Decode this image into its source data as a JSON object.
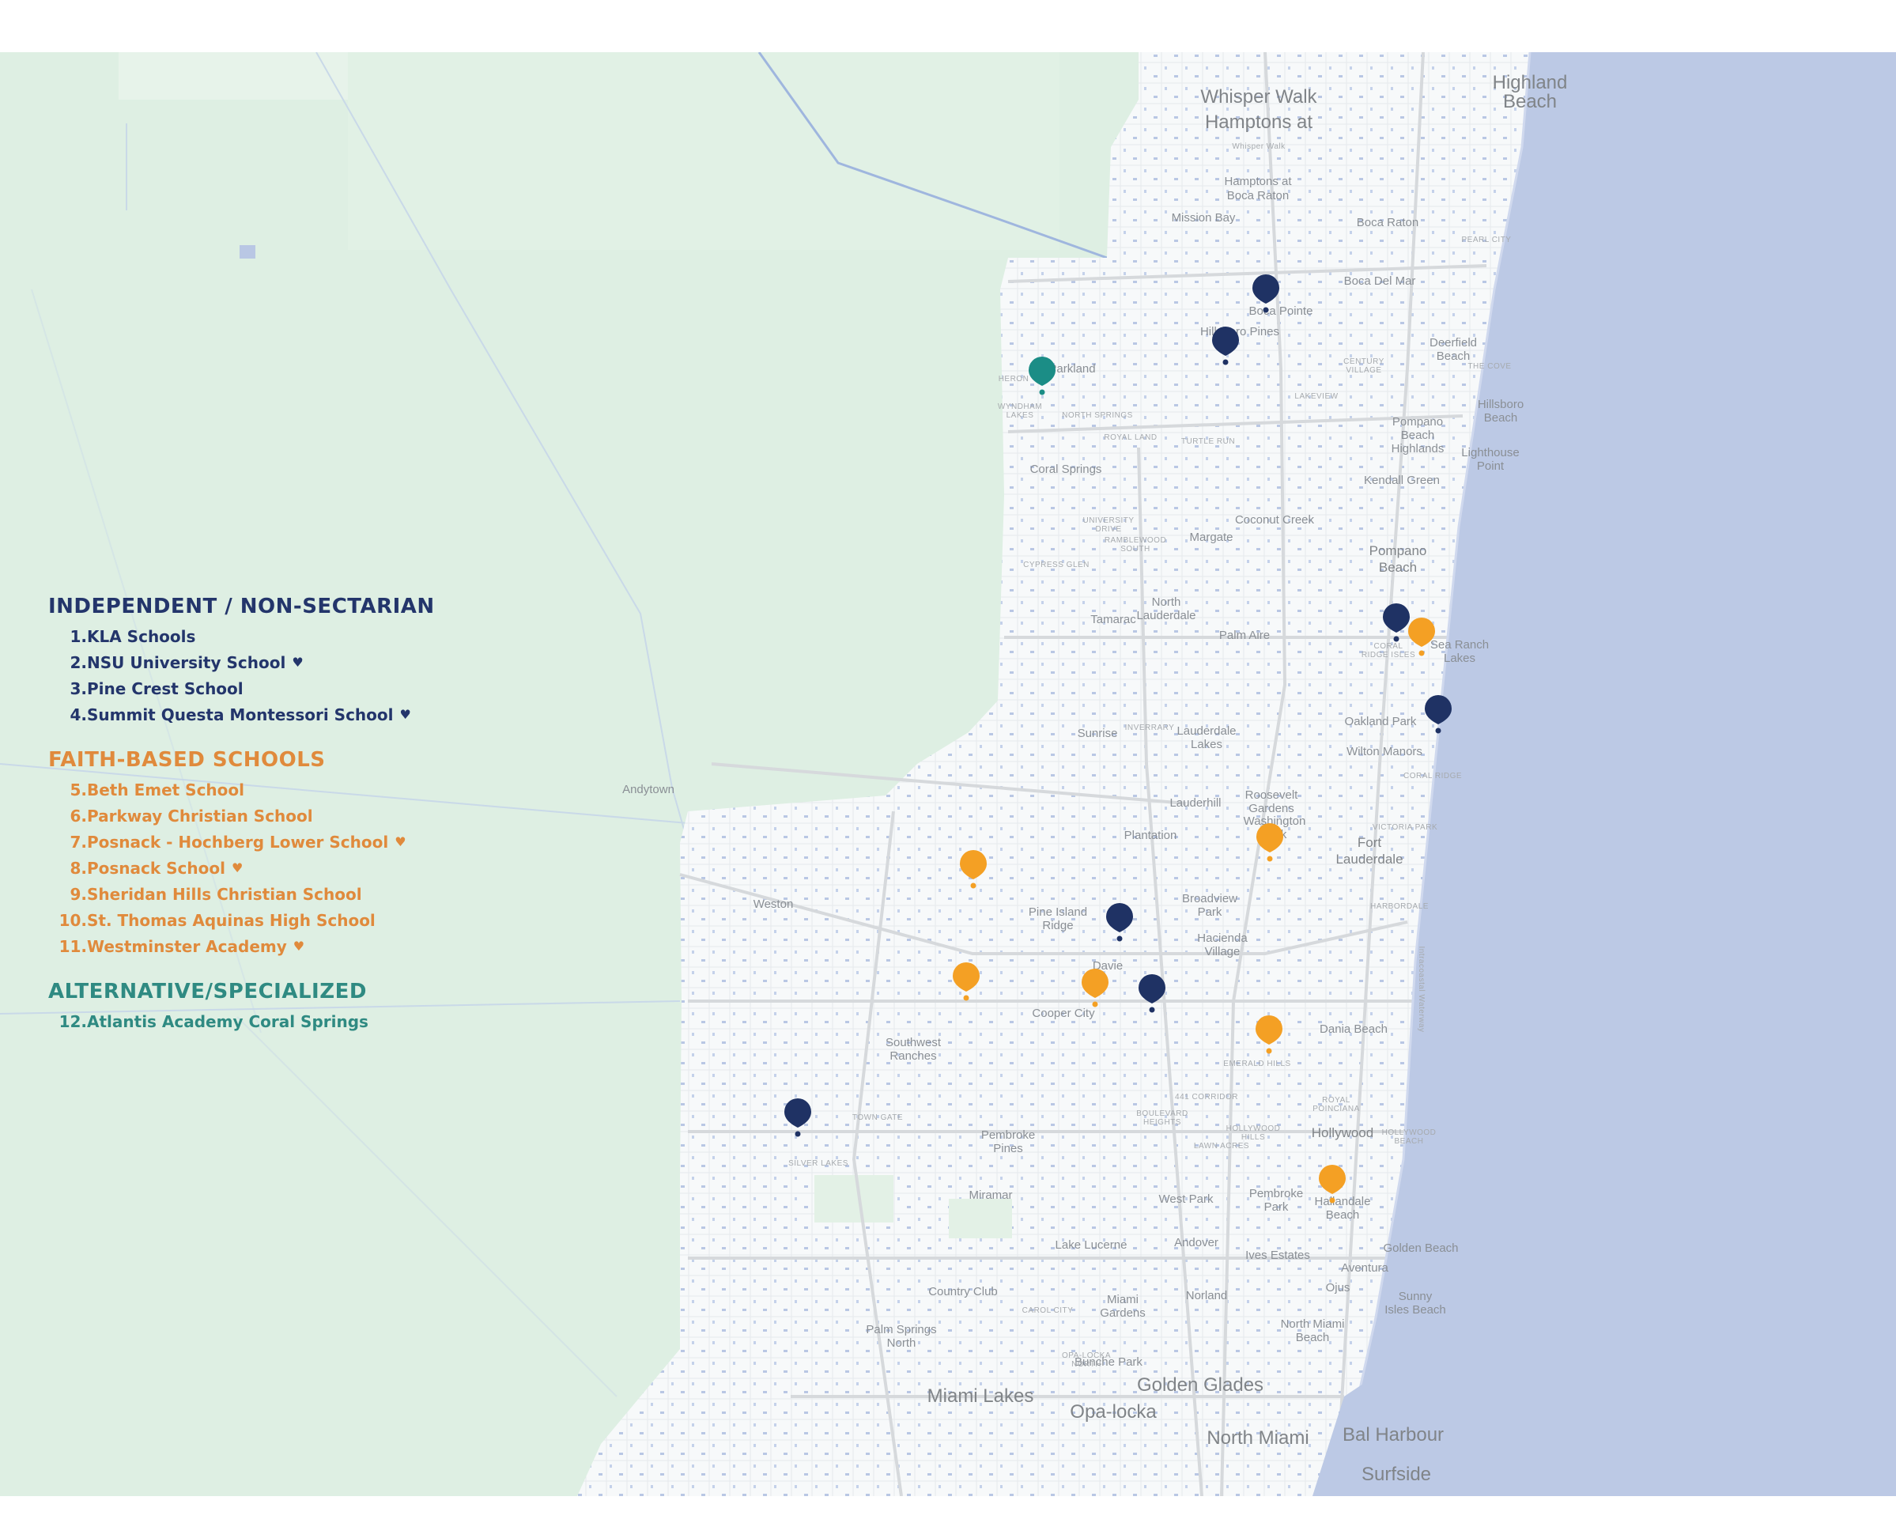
{
  "colors": {
    "independent": "#1f3264",
    "faith": "#f4a024",
    "alternative": "#1b8d86",
    "ocean": "#bcc9e5",
    "everglades": "#deefe3",
    "urban": "#f7f9fa",
    "water": "#a9bde0",
    "road": "#d6d9dc"
  },
  "legend": {
    "groups": [
      {
        "key": "independent",
        "heading": "INDEPENDENT / NON-SECTARIAN",
        "items": [
          {
            "num": "1.",
            "name": "KLA Schools",
            "favorite": false
          },
          {
            "num": "2.",
            "name": "NSU University School",
            "favorite": true
          },
          {
            "num": "3.",
            "name": "Pine Crest School",
            "favorite": false
          },
          {
            "num": "4.",
            "name": "Summit Questa Montessori School",
            "favorite": true
          }
        ]
      },
      {
        "key": "faith",
        "heading": "FAITH-BASED SCHOOLS",
        "items": [
          {
            "num": "5.",
            "name": "Beth Emet School",
            "favorite": false
          },
          {
            "num": "6.",
            "name": "Parkway Christian School",
            "favorite": false
          },
          {
            "num": "7.",
            "name": "Posnack - Hochberg Lower School",
            "favorite": true
          },
          {
            "num": "8.",
            "name": "Posnack School",
            "favorite": true
          },
          {
            "num": "9.",
            "name": "Sheridan Hills Christian School",
            "favorite": false
          },
          {
            "num": "10.",
            "name": "St. Thomas Aquinas High School",
            "favorite": false
          },
          {
            "num": "11.",
            "name": "Westminster Academy",
            "favorite": true
          }
        ]
      },
      {
        "key": "alternative",
        "heading": "ALTERNATIVE/SPECIALIZED",
        "items": [
          {
            "num": "12.",
            "name": "Atlantis Academy Coral Springs",
            "favorite": false
          }
        ]
      }
    ],
    "favorite_symbol": "♥"
  },
  "place_labels": [
    {
      "text": "Whisper Walk",
      "size": "big"
    },
    {
      "text": "Hamptons at",
      "size": "big"
    },
    {
      "text": "Whisper Walk",
      "size": "sm"
    },
    {
      "text": "Highland",
      "size": "big"
    },
    {
      "text": "Beach",
      "size": "big"
    },
    {
      "text": "Hamptons at",
      "size": "mid"
    },
    {
      "text": "Boca Raton",
      "size": "mid"
    },
    {
      "text": "Mission Bay",
      "size": "mid"
    },
    {
      "text": "Boca Raton",
      "size": "mid"
    },
    {
      "text": "Boca Del Mar",
      "size": "mid"
    },
    {
      "text": "Boca Pointe",
      "size": "mid"
    },
    {
      "text": "Hillsboro Pines",
      "size": "mid"
    },
    {
      "text": "Parkland",
      "size": "mid"
    },
    {
      "text": "Deerfield",
      "size": "mid"
    },
    {
      "text": "Beach",
      "size": "mid"
    },
    {
      "text": "Hillsboro",
      "size": "mid"
    },
    {
      "text": "Beach",
      "size": "mid"
    },
    {
      "text": "Pompano",
      "size": "mid"
    },
    {
      "text": "Beach",
      "size": "mid"
    },
    {
      "text": "Highlands",
      "size": "mid"
    },
    {
      "text": "Lighthouse",
      "size": "mid"
    },
    {
      "text": "Point",
      "size": "mid"
    },
    {
      "text": "Coral Springs",
      "size": "mid"
    },
    {
      "text": "Kendall Green",
      "size": "mid"
    },
    {
      "text": "Coconut Creek",
      "size": "mid"
    },
    {
      "text": "Margate",
      "size": "mid"
    },
    {
      "text": "Pompano",
      "size": "big"
    },
    {
      "text": "Beach",
      "size": "big"
    },
    {
      "text": "North",
      "size": "mid"
    },
    {
      "text": "Lauderdale",
      "size": "mid"
    },
    {
      "text": "Tamarac",
      "size": "mid"
    },
    {
      "text": "Palm Aire",
      "size": "mid"
    },
    {
      "text": "Sea Ranch",
      "size": "mid"
    },
    {
      "text": "Lakes",
      "size": "mid"
    },
    {
      "text": "Sunrise",
      "size": "mid"
    },
    {
      "text": "Lauderdale",
      "size": "mid"
    },
    {
      "text": "Lakes",
      "size": "mid"
    },
    {
      "text": "Oakland Park",
      "size": "mid"
    },
    {
      "text": "Wilton Manors",
      "size": "mid"
    },
    {
      "text": "Andytown",
      "size": "mid"
    },
    {
      "text": "Lauderhill",
      "size": "mid"
    },
    {
      "text": "Roosevelt",
      "size": "mid"
    },
    {
      "text": "Gardens",
      "size": "mid"
    },
    {
      "text": "Washington",
      "size": "mid"
    },
    {
      "text": "Park",
      "size": "mid"
    },
    {
      "text": "Plantation",
      "size": "mid"
    },
    {
      "text": "Fort",
      "size": "big"
    },
    {
      "text": "Lauderdale",
      "size": "big"
    },
    {
      "text": "Weston",
      "size": "mid"
    },
    {
      "text": "Broadview",
      "size": "mid"
    },
    {
      "text": "Park",
      "size": "mid"
    },
    {
      "text": "Pine Island",
      "size": "mid"
    },
    {
      "text": "Ridge",
      "size": "mid"
    },
    {
      "text": "Hacienda",
      "size": "mid"
    },
    {
      "text": "Village",
      "size": "mid"
    },
    {
      "text": "Davie",
      "size": "mid"
    },
    {
      "text": "Cooper City",
      "size": "mid"
    },
    {
      "text": "Dania Beach",
      "size": "mid"
    },
    {
      "text": "Southwest",
      "size": "mid"
    },
    {
      "text": "Ranches",
      "size": "mid"
    },
    {
      "text": "Hollywood",
      "size": "big"
    },
    {
      "text": "Pembroke",
      "size": "mid"
    },
    {
      "text": "Pines",
      "size": "mid"
    },
    {
      "text": "Miramar",
      "size": "mid"
    },
    {
      "text": "West Park",
      "size": "mid"
    },
    {
      "text": "Pembroke",
      "size": "mid"
    },
    {
      "text": "Park",
      "size": "mid"
    },
    {
      "text": "Hallandale",
      "size": "mid"
    },
    {
      "text": "Beach",
      "size": "mid"
    },
    {
      "text": "Lake Lucerne",
      "size": "mid"
    },
    {
      "text": "Andover",
      "size": "mid"
    },
    {
      "text": "Golden Beach",
      "size": "mid"
    },
    {
      "text": "Ives Estates",
      "size": "mid"
    },
    {
      "text": "Aventura",
      "size": "mid"
    },
    {
      "text": "Ojus",
      "size": "mid"
    },
    {
      "text": "Sunny",
      "size": "mid"
    },
    {
      "text": "Isles Beach",
      "size": "mid"
    },
    {
      "text": "Country Club",
      "size": "mid"
    },
    {
      "text": "Miami",
      "size": "mid"
    },
    {
      "text": "Gardens",
      "size": "mid"
    },
    {
      "text": "Norland",
      "size": "mid"
    },
    {
      "text": "North Miami",
      "size": "mid"
    },
    {
      "text": "Beach",
      "size": "mid"
    },
    {
      "text": "Palm Springs",
      "size": "mid"
    },
    {
      "text": "North",
      "size": "mid"
    },
    {
      "text": "Bunche Park",
      "size": "mid"
    },
    {
      "text": "Golden Glades",
      "size": "big"
    },
    {
      "text": "Miami Lakes",
      "size": "big"
    },
    {
      "text": "Opa-locka",
      "size": "big"
    },
    {
      "text": "North Miami",
      "size": "big"
    },
    {
      "text": "Bal Harbour",
      "size": "big"
    },
    {
      "text": "Surfside",
      "size": "big"
    },
    {
      "text": "PEARL CITY",
      "size": "sm"
    },
    {
      "text": "THE COVE",
      "size": "sm"
    },
    {
      "text": "CENTURY",
      "size": "sm"
    },
    {
      "text": "VILLAGE",
      "size": "sm"
    },
    {
      "text": "LAKEVIEW",
      "size": "sm"
    },
    {
      "text": "NORTH SPRINGS",
      "size": "sm"
    },
    {
      "text": "ROYAL LAND",
      "size": "sm"
    },
    {
      "text": "TURTLE RUN",
      "size": "sm"
    },
    {
      "text": "UNIVERSITY",
      "size": "sm"
    },
    {
      "text": "DRIVE",
      "size": "sm"
    },
    {
      "text": "RAMBLEWOOD",
      "size": "sm"
    },
    {
      "text": "SOUTH",
      "size": "sm"
    },
    {
      "text": "CYPRESS GLEN",
      "size": "sm"
    },
    {
      "text": "CORAL",
      "size": "sm"
    },
    {
      "text": "RIDGE ISLES",
      "size": "sm"
    },
    {
      "text": "INVERRARY",
      "size": "sm"
    },
    {
      "text": "CORAL RIDGE",
      "size": "sm"
    },
    {
      "text": "VICTORIA PARK",
      "size": "sm"
    },
    {
      "text": "HARBORDALE",
      "size": "sm"
    },
    {
      "text": "EMERALD HILLS",
      "size": "sm"
    },
    {
      "text": "441 CORRIDOR",
      "size": "sm"
    },
    {
      "text": "ROYAL",
      "size": "sm"
    },
    {
      "text": "POINCIANA",
      "size": "sm"
    },
    {
      "text": "BOULEVARD",
      "size": "sm"
    },
    {
      "text": "HEIGHTS",
      "size": "sm"
    },
    {
      "text": "HOLLYWOOD",
      "size": "sm"
    },
    {
      "text": "HILLS",
      "size": "sm"
    },
    {
      "text": "LAWN ACRES",
      "size": "sm"
    },
    {
      "text": "HOLLYWOOD",
      "size": "sm"
    },
    {
      "text": "BEACH",
      "size": "sm"
    },
    {
      "text": "TOWN GATE",
      "size": "sm"
    },
    {
      "text": "SILVER LAKES",
      "size": "sm"
    },
    {
      "text": "CAROL CITY",
      "size": "sm"
    },
    {
      "text": "OPA-LOCKA",
      "size": "sm"
    },
    {
      "text": "NORTH",
      "size": "sm"
    },
    {
      "text": "WYNDHAM",
      "size": "sm"
    },
    {
      "text": "LAKES",
      "size": "sm"
    },
    {
      "text": "HERON",
      "size": "sm"
    },
    {
      "text": "Intracoastal Waterway",
      "size": "sm"
    }
  ]
}
